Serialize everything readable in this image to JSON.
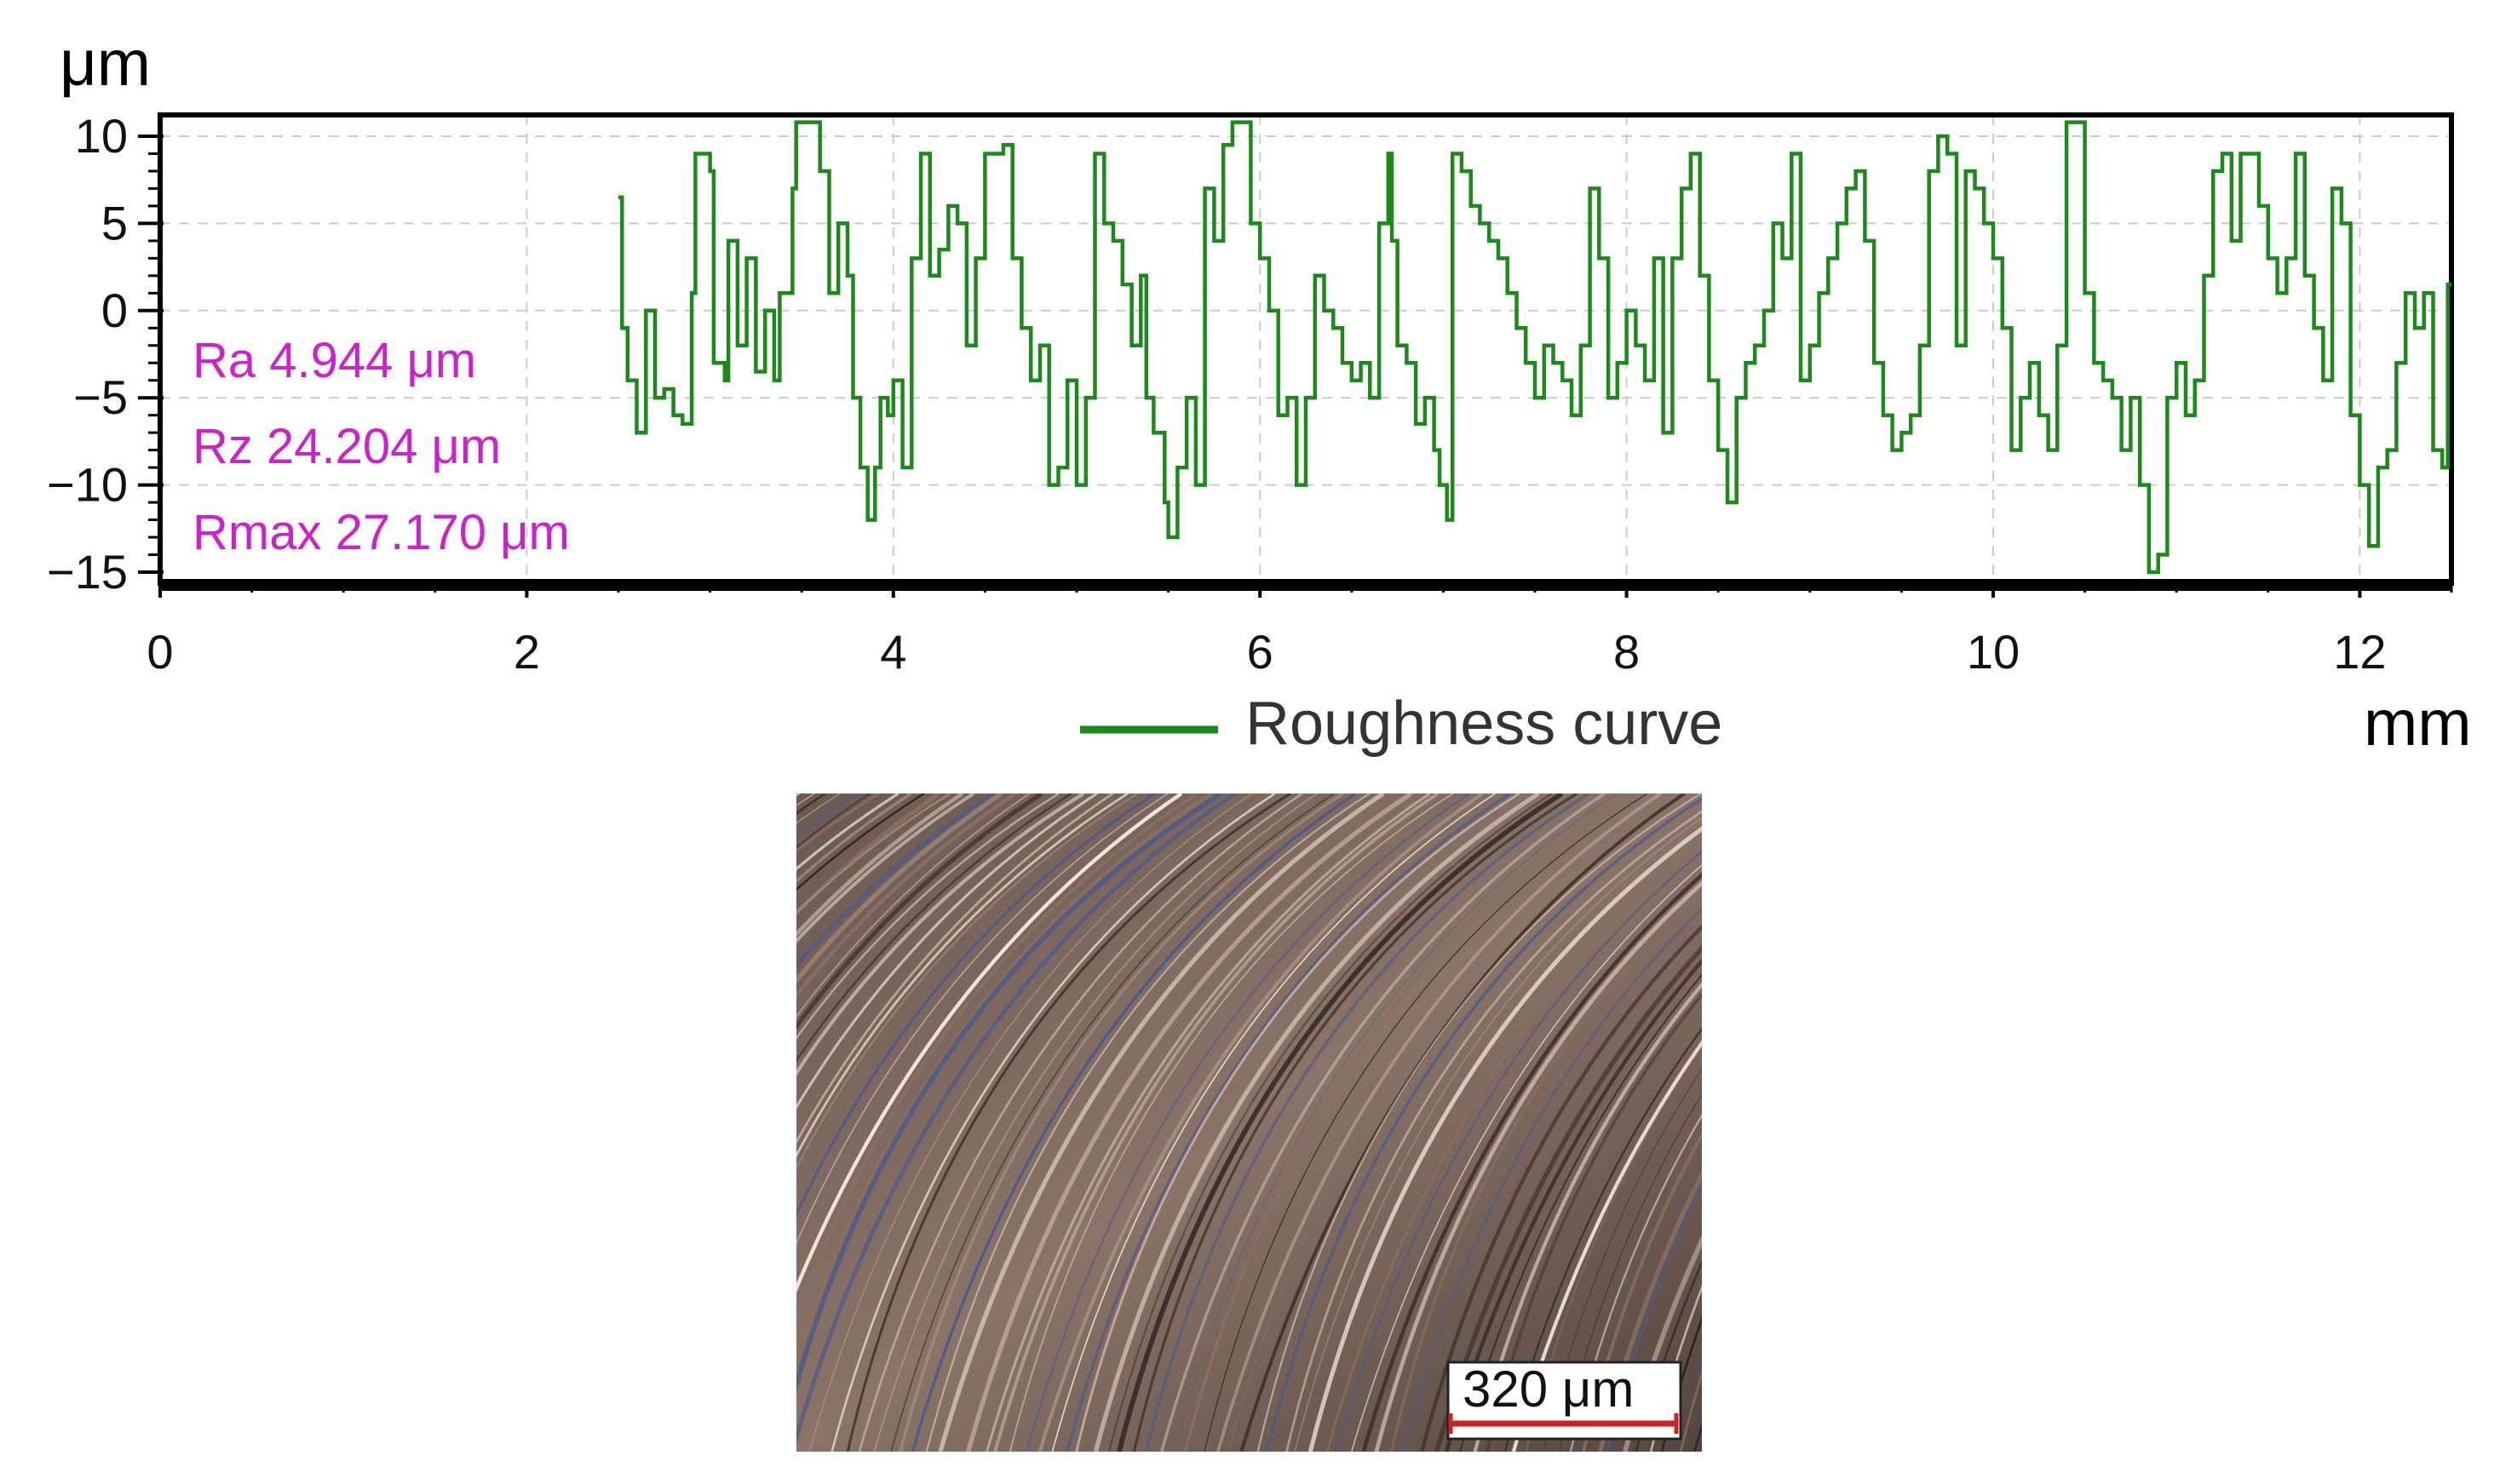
{
  "chart_data": {
    "type": "line",
    "title": "",
    "xlabel": "mm",
    "ylabel": "μm",
    "xlim": [
      0,
      12.5
    ],
    "ylim": [
      -15,
      10
    ],
    "x_ticks": [
      "0",
      "2",
      "4",
      "6",
      "8",
      "10",
      "12"
    ],
    "y_ticks": [
      "10",
      "5",
      "0",
      "−5",
      "−10",
      "−15"
    ],
    "grid": true,
    "legend_position": "bottom-center",
    "series": [
      {
        "name": "Roughness curve",
        "color": "#1b8a1b",
        "points": [
          [
            2.5,
            6.5
          ],
          [
            2.52,
            -1
          ],
          [
            2.55,
            -4
          ],
          [
            2.6,
            -7
          ],
          [
            2.65,
            0
          ],
          [
            2.7,
            -5
          ],
          [
            2.75,
            -4.5
          ],
          [
            2.8,
            -6
          ],
          [
            2.85,
            -6.5
          ],
          [
            2.9,
            1
          ],
          [
            2.92,
            9
          ],
          [
            3.0,
            8
          ],
          [
            3.02,
            -3
          ],
          [
            3.08,
            -4
          ],
          [
            3.1,
            4
          ],
          [
            3.15,
            -2
          ],
          [
            3.2,
            3
          ],
          [
            3.25,
            -3.5
          ],
          [
            3.3,
            0
          ],
          [
            3.35,
            -4
          ],
          [
            3.38,
            1
          ],
          [
            3.42,
            1
          ],
          [
            3.45,
            7
          ],
          [
            3.47,
            10.8
          ],
          [
            3.55,
            10.8
          ],
          [
            3.6,
            8
          ],
          [
            3.65,
            1
          ],
          [
            3.7,
            5
          ],
          [
            3.75,
            2
          ],
          [
            3.78,
            -5
          ],
          [
            3.82,
            -9
          ],
          [
            3.86,
            -12
          ],
          [
            3.9,
            -9
          ],
          [
            3.93,
            -5
          ],
          [
            3.97,
            -6
          ],
          [
            4.0,
            -4
          ],
          [
            4.05,
            -9
          ],
          [
            4.1,
            3
          ],
          [
            4.15,
            9
          ],
          [
            4.2,
            2
          ],
          [
            4.25,
            3.5
          ],
          [
            4.3,
            6
          ],
          [
            4.35,
            5
          ],
          [
            4.4,
            -2
          ],
          [
            4.45,
            3
          ],
          [
            4.5,
            9
          ],
          [
            4.6,
            9.5
          ],
          [
            4.65,
            3
          ],
          [
            4.7,
            -1
          ],
          [
            4.75,
            -4
          ],
          [
            4.8,
            -2
          ],
          [
            4.85,
            -10
          ],
          [
            4.9,
            -9
          ],
          [
            4.95,
            -4
          ],
          [
            5.0,
            -10
          ],
          [
            5.05,
            -5
          ],
          [
            5.1,
            9
          ],
          [
            5.15,
            5
          ],
          [
            5.2,
            4
          ],
          [
            5.25,
            1.5
          ],
          [
            5.3,
            -2
          ],
          [
            5.35,
            2
          ],
          [
            5.38,
            -5
          ],
          [
            5.42,
            -7
          ],
          [
            5.48,
            -11
          ],
          [
            5.5,
            -13
          ],
          [
            5.55,
            -9
          ],
          [
            5.6,
            -5
          ],
          [
            5.65,
            -10
          ],
          [
            5.7,
            7
          ],
          [
            5.75,
            4
          ],
          [
            5.8,
            9.5
          ],
          [
            5.85,
            10.8
          ],
          [
            5.9,
            10.8
          ],
          [
            5.95,
            5
          ],
          [
            6.0,
            3
          ],
          [
            6.05,
            0
          ],
          [
            6.1,
            -6
          ],
          [
            6.15,
            -5
          ],
          [
            6.2,
            -10
          ],
          [
            6.25,
            -5
          ],
          [
            6.3,
            2
          ],
          [
            6.35,
            0
          ],
          [
            6.4,
            -1
          ],
          [
            6.45,
            -3
          ],
          [
            6.5,
            -4
          ],
          [
            6.55,
            -3
          ],
          [
            6.6,
            -5
          ],
          [
            6.65,
            5
          ],
          [
            6.7,
            9
          ],
          [
            6.72,
            4
          ],
          [
            6.75,
            -2
          ],
          [
            6.8,
            -3
          ],
          [
            6.85,
            -6.5
          ],
          [
            6.9,
            -5
          ],
          [
            6.95,
            -8
          ],
          [
            6.98,
            -10
          ],
          [
            7.02,
            -12
          ],
          [
            7.05,
            9
          ],
          [
            7.1,
            8
          ],
          [
            7.15,
            6
          ],
          [
            7.2,
            5
          ],
          [
            7.25,
            4
          ],
          [
            7.3,
            3
          ],
          [
            7.35,
            1
          ],
          [
            7.4,
            -1
          ],
          [
            7.45,
            -3
          ],
          [
            7.5,
            -5
          ],
          [
            7.55,
            -2
          ],
          [
            7.6,
            -3
          ],
          [
            7.65,
            -4
          ],
          [
            7.7,
            -6
          ],
          [
            7.75,
            -2
          ],
          [
            7.8,
            7
          ],
          [
            7.85,
            3
          ],
          [
            7.9,
            -5
          ],
          [
            7.95,
            -3
          ],
          [
            8.0,
            0
          ],
          [
            8.05,
            -2
          ],
          [
            8.1,
            -4
          ],
          [
            8.15,
            3
          ],
          [
            8.2,
            -7
          ],
          [
            8.25,
            3
          ],
          [
            8.3,
            7
          ],
          [
            8.35,
            9
          ],
          [
            8.4,
            2
          ],
          [
            8.45,
            -4
          ],
          [
            8.5,
            -8
          ],
          [
            8.55,
            -11
          ],
          [
            8.6,
            -5
          ],
          [
            8.65,
            -3
          ],
          [
            8.7,
            -2
          ],
          [
            8.75,
            0
          ],
          [
            8.8,
            5
          ],
          [
            8.85,
            3
          ],
          [
            8.9,
            9
          ],
          [
            8.95,
            -4
          ],
          [
            9.0,
            -2
          ],
          [
            9.05,
            1
          ],
          [
            9.1,
            3
          ],
          [
            9.15,
            5
          ],
          [
            9.2,
            7
          ],
          [
            9.25,
            8
          ],
          [
            9.3,
            4
          ],
          [
            9.35,
            -3
          ],
          [
            9.4,
            -6
          ],
          [
            9.45,
            -8
          ],
          [
            9.5,
            -7
          ],
          [
            9.55,
            -6
          ],
          [
            9.6,
            -2
          ],
          [
            9.65,
            8
          ],
          [
            9.7,
            10
          ],
          [
            9.75,
            9
          ],
          [
            9.8,
            -2
          ],
          [
            9.85,
            8
          ],
          [
            9.9,
            7
          ],
          [
            9.95,
            5
          ],
          [
            10.0,
            3
          ],
          [
            10.05,
            -1
          ],
          [
            10.1,
            -8
          ],
          [
            10.15,
            -5
          ],
          [
            10.2,
            -3
          ],
          [
            10.25,
            -6
          ],
          [
            10.3,
            -8
          ],
          [
            10.35,
            -2
          ],
          [
            10.4,
            10.8
          ],
          [
            10.45,
            10.8
          ],
          [
            10.5,
            1
          ],
          [
            10.55,
            -3
          ],
          [
            10.6,
            -4
          ],
          [
            10.65,
            -5
          ],
          [
            10.7,
            -8
          ],
          [
            10.75,
            -5
          ],
          [
            10.8,
            -10
          ],
          [
            10.85,
            -15
          ],
          [
            10.9,
            -14
          ],
          [
            10.95,
            -5
          ],
          [
            11.0,
            -3
          ],
          [
            11.05,
            -6
          ],
          [
            11.1,
            -4
          ],
          [
            11.15,
            2
          ],
          [
            11.2,
            8
          ],
          [
            11.25,
            9
          ],
          [
            11.3,
            4
          ],
          [
            11.35,
            9
          ],
          [
            11.4,
            9
          ],
          [
            11.45,
            6
          ],
          [
            11.5,
            3
          ],
          [
            11.55,
            1
          ],
          [
            11.6,
            3
          ],
          [
            11.65,
            9
          ],
          [
            11.7,
            2
          ],
          [
            11.75,
            -1
          ],
          [
            11.8,
            -4
          ],
          [
            11.85,
            7
          ],
          [
            11.9,
            5
          ],
          [
            11.95,
            -6
          ],
          [
            12.0,
            -10
          ],
          [
            12.05,
            -13.5
          ],
          [
            12.1,
            -9
          ],
          [
            12.15,
            -8
          ],
          [
            12.2,
            -3
          ],
          [
            12.25,
            1
          ],
          [
            12.3,
            -1
          ],
          [
            12.35,
            1
          ],
          [
            12.4,
            -8
          ],
          [
            12.45,
            -9
          ],
          [
            12.48,
            1.5
          ],
          [
            12.5,
            1.5
          ]
        ]
      }
    ],
    "annotations": [
      "Ra 4.944 μm",
      "Rz 24.204 μm",
      "Rmax 27.170 μm"
    ]
  },
  "micrograph": {
    "scale_bar_label": "320 μm"
  },
  "colors": {
    "curve": "#1b8a1b",
    "params": "#cc22cc",
    "scale_bar": "#cc2222"
  }
}
